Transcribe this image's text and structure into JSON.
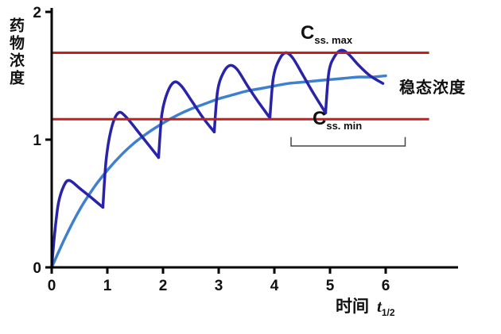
{
  "chart_data": {
    "type": "line",
    "ylabel": "药物浓度",
    "xlabel": "时间",
    "xlabel_math": "t",
    "xlabel_math_sub": "1/2",
    "xlim": [
      0,
      7.3
    ],
    "ylim": [
      0,
      2
    ],
    "x_ticks": [
      0,
      1,
      2,
      3,
      4,
      5,
      6
    ],
    "y_ticks": [
      0,
      1,
      2
    ],
    "grid": false,
    "colors": {
      "axis": "#000000",
      "reference": "#c22020",
      "multiple_dose": "#2823a8",
      "infusion": "#3f7fd0",
      "bracket": "#444444"
    },
    "reference_lines": [
      {
        "name": "Css_max",
        "value": 1.68,
        "x_start": 0,
        "x_end": 6.78
      },
      {
        "name": "Css_min",
        "value": 1.16,
        "x_start": 0,
        "x_end": 6.78
      }
    ],
    "annotations": {
      "css_max": {
        "base": "C",
        "sub": "ss. max"
      },
      "css_min": {
        "base": "C",
        "sub": "ss. min"
      },
      "steady_state": "稳态浓度"
    },
    "bracket": {
      "x_start": 4.3,
      "x_end": 6.35,
      "y": 0.95,
      "tick_height": 0.07
    },
    "series": [
      {
        "name": "continuous-infusion-curve",
        "color_key": "infusion",
        "width": 3.5,
        "segments": [
          [
            [
              0,
              0
            ],
            [
              0.25,
              0.24
            ],
            [
              0.5,
              0.45
            ],
            [
              0.75,
              0.62
            ],
            [
              1,
              0.76
            ],
            [
              1.25,
              0.88
            ],
            [
              1.5,
              0.98
            ],
            [
              1.75,
              1.06
            ],
            [
              2,
              1.13
            ],
            [
              2.25,
              1.19
            ],
            [
              2.5,
              1.24
            ],
            [
              2.75,
              1.28
            ],
            [
              3,
              1.32
            ],
            [
              3.25,
              1.35
            ],
            [
              3.5,
              1.38
            ],
            [
              3.75,
              1.4
            ],
            [
              4,
              1.42
            ],
            [
              4.25,
              1.44
            ],
            [
              4.5,
              1.45
            ],
            [
              4.75,
              1.46
            ],
            [
              5,
              1.47
            ],
            [
              5.25,
              1.48
            ],
            [
              5.5,
              1.49
            ],
            [
              5.75,
              1.49
            ],
            [
              6,
              1.5
            ]
          ]
        ]
      },
      {
        "name": "multiple-dose-curve",
        "color_key": "multiple_dose",
        "width": 3.5,
        "segments": [
          [
            [
              0,
              0
            ],
            [
              0.05,
              0.25
            ],
            [
              0.12,
              0.5
            ],
            [
              0.22,
              0.64
            ],
            [
              0.32,
              0.68
            ],
            [
              0.5,
              0.62
            ],
            [
              0.7,
              0.55
            ],
            [
              0.92,
              0.47
            ]
          ],
          [
            [
              0.92,
              0.47
            ],
            [
              0.98,
              0.85
            ],
            [
              1.08,
              1.1
            ],
            [
              1.2,
              1.21
            ],
            [
              1.33,
              1.18
            ],
            [
              1.52,
              1.08
            ],
            [
              1.72,
              0.97
            ],
            [
              1.92,
              0.86
            ]
          ],
          [
            [
              1.92,
              0.86
            ],
            [
              1.98,
              1.2
            ],
            [
              2.08,
              1.37
            ],
            [
              2.2,
              1.45
            ],
            [
              2.33,
              1.42
            ],
            [
              2.52,
              1.3
            ],
            [
              2.72,
              1.17
            ],
            [
              2.92,
              1.06
            ]
          ],
          [
            [
              2.92,
              1.06
            ],
            [
              2.98,
              1.38
            ],
            [
              3.08,
              1.52
            ],
            [
              3.2,
              1.58
            ],
            [
              3.33,
              1.55
            ],
            [
              3.52,
              1.42
            ],
            [
              3.72,
              1.29
            ],
            [
              3.92,
              1.17
            ]
          ],
          [
            [
              3.92,
              1.17
            ],
            [
              3.98,
              1.48
            ],
            [
              4.08,
              1.62
            ],
            [
              4.2,
              1.68
            ],
            [
              4.33,
              1.64
            ],
            [
              4.52,
              1.5
            ],
            [
              4.72,
              1.35
            ],
            [
              4.92,
              1.21
            ]
          ],
          [
            [
              4.92,
              1.21
            ],
            [
              4.98,
              1.53
            ],
            [
              5.08,
              1.65
            ],
            [
              5.2,
              1.7
            ],
            [
              5.33,
              1.67
            ],
            [
              5.52,
              1.58
            ],
            [
              5.72,
              1.5
            ],
            [
              5.95,
              1.44
            ]
          ]
        ]
      }
    ]
  }
}
